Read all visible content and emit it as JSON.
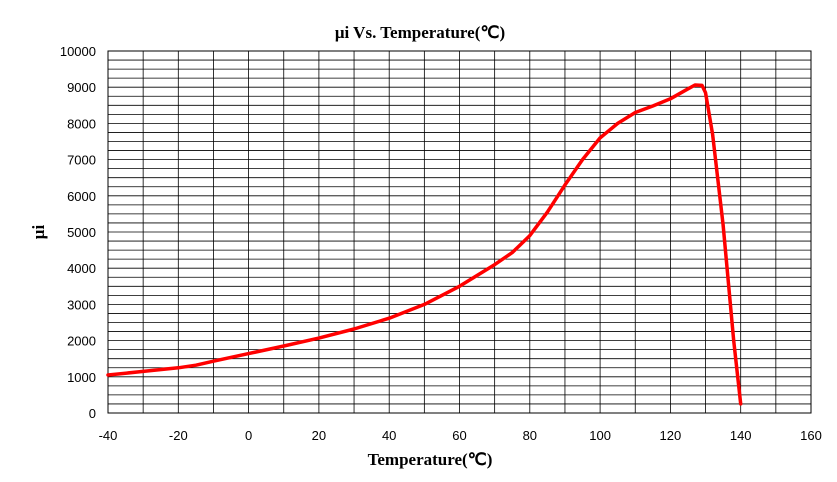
{
  "chart_data": {
    "type": "line",
    "title": "μi Vs. Temperature(℃)",
    "xlabel": "Temperature(℃)",
    "ylabel": "μi",
    "xlim": [
      -40,
      160
    ],
    "ylim": [
      0,
      10000
    ],
    "x_major_step": 20,
    "y_major_step": 1000,
    "x_minor_step": 10,
    "y_minor_step": 250,
    "grid": true,
    "legend": "none",
    "x_tick_labels": [
      "-40",
      "-20",
      "0",
      "20",
      "40",
      "60",
      "80",
      "100",
      "120",
      "140",
      "160"
    ],
    "y_tick_labels": [
      "0",
      "1000",
      "2000",
      "3000",
      "4000",
      "5000",
      "6000",
      "7000",
      "8000",
      "9000",
      "10000"
    ],
    "series_color": "#ff0000",
    "series": [
      {
        "x": [
          -40,
          -30,
          -20,
          -15,
          -10,
          0,
          10,
          20,
          30,
          40,
          50,
          60,
          70,
          75,
          80,
          85,
          90,
          95,
          100,
          105,
          110,
          115,
          120,
          124,
          127,
          129,
          130,
          132,
          135,
          138,
          140
        ],
        "y": [
          1050,
          1150,
          1250,
          1320,
          1430,
          1640,
          1850,
          2070,
          2320,
          2620,
          3000,
          3500,
          4100,
          4430,
          4900,
          5550,
          6300,
          7000,
          7600,
          8000,
          8300,
          8480,
          8680,
          8900,
          9060,
          9050,
          8850,
          7700,
          5200,
          2000,
          250
        ]
      }
    ]
  }
}
